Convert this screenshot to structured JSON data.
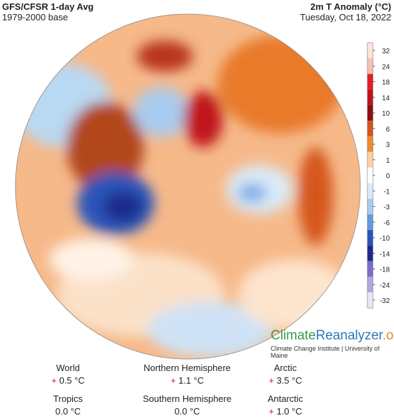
{
  "header": {
    "title": "GFS/CFSR 1-day Avg",
    "base": "1979-2000 base",
    "variable": "2m T Anomaly (°C)",
    "date": "Tuesday, Oct 18, 2022"
  },
  "colorbar": {
    "ticks": [
      32,
      24,
      18,
      14,
      10,
      6,
      3,
      1,
      0,
      -1,
      -3,
      -6,
      -10,
      -14,
      -18,
      -24,
      -32
    ],
    "colors": [
      "#fbe6dc",
      "#f6c0b0",
      "#e41e26",
      "#c0121b",
      "#8c0f10",
      "#d5561b",
      "#ef8a2f",
      "#fcd2a2",
      "#ffffff",
      "#dceaf8",
      "#a8ccef",
      "#5f9be2",
      "#2b54b9",
      "#1b2a8a",
      "#7d6bc6",
      "#b5a5df",
      "#ebe5f5"
    ]
  },
  "branding": {
    "name_parts": [
      "Climate",
      "Reanalyzer",
      ".org"
    ],
    "subtitle": "Climate Change Institute | University of Maine"
  },
  "stats": [
    {
      "label": "World",
      "sign": "+",
      "value": "0.5 °C"
    },
    {
      "label": "Northern Hemisphere",
      "sign": "+",
      "value": "1.1 °C"
    },
    {
      "label": "Arctic",
      "sign": "+",
      "value": "3.5 °C"
    },
    {
      "label": "Tropics",
      "value": "0.0 °C"
    },
    {
      "label": "Southern Hemisphere",
      "value": "0.0 °C"
    },
    {
      "label": "Antarctic",
      "sign": "+",
      "value": "1.0 °C"
    }
  ]
}
